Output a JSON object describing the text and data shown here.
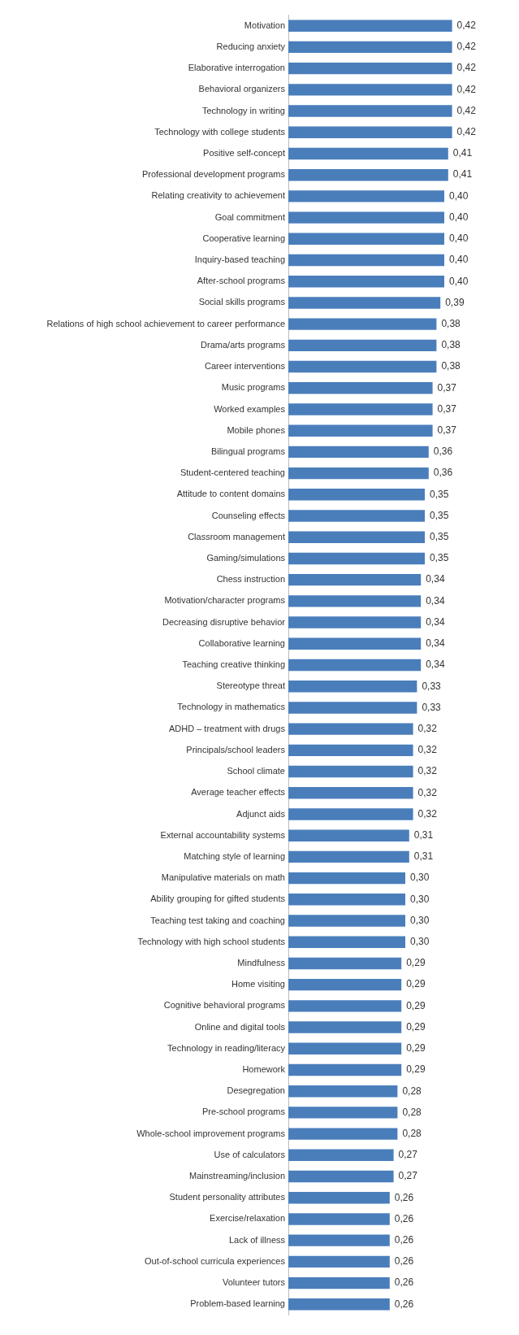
{
  "chart_data": {
    "type": "bar",
    "orientation": "horizontal",
    "tick_labels": "y",
    "color": "#4a7ebb",
    "categories": [
      "Motivation",
      "Reducing anxiety",
      "Elaborative interrogation",
      "Behavioral organizers",
      "Technology in writing",
      "Technology with college students",
      "Positive self-concept",
      "Professional development programs",
      "Relating creativity to achievement",
      "Goal commitment",
      "Cooperative learning",
      "Inquiry-based teaching",
      "After-school programs",
      "Social skills programs",
      "Relations of high school achievement to career performance",
      "Drama/arts programs",
      "Career interventions",
      "Music programs",
      "Worked examples",
      "Mobile phones",
      "Bilingual programs",
      "Student-centered teaching",
      "Attitude to content domains",
      "Counseling effects",
      "Classroom management",
      "Gaming/simulations",
      "Chess instruction",
      "Motivation/character programs",
      "Decreasing disruptive behavior",
      "Collaborative learning",
      "Teaching creative thinking",
      "Stereotype threat",
      "Technology in mathematics",
      "ADHD – treatment with drugs",
      "Principals/school leaders",
      "School climate",
      "Average teacher effects",
      "Adjunct aids",
      "External accountability systems",
      "Matching style of learning",
      "Manipulative materials on math",
      "Ability grouping for gifted students",
      "Teaching test taking and coaching",
      "Technology with high school students",
      "Mindfulness",
      "Home visiting",
      "Cognitive behavioral programs",
      "Online and digital tools",
      "Technology in reading/literacy",
      "Homework",
      "Desegregation",
      "Pre-school programs",
      "Whole-school improvement programs",
      "Use of calculators",
      "Mainstreaming/inclusion",
      "Student personality attributes",
      "Exercise/relaxation",
      "Lack of illness",
      "Out-of-school curricula experiences",
      "Volunteer tutors",
      "Problem-based learning"
    ],
    "values": [
      0.42,
      0.42,
      0.42,
      0.42,
      0.42,
      0.42,
      0.41,
      0.41,
      0.4,
      0.4,
      0.4,
      0.4,
      0.4,
      0.39,
      0.38,
      0.38,
      0.38,
      0.37,
      0.37,
      0.37,
      0.36,
      0.36,
      0.35,
      0.35,
      0.35,
      0.35,
      0.34,
      0.34,
      0.34,
      0.34,
      0.34,
      0.33,
      0.33,
      0.32,
      0.32,
      0.32,
      0.32,
      0.32,
      0.31,
      0.31,
      0.3,
      0.3,
      0.3,
      0.3,
      0.29,
      0.29,
      0.29,
      0.29,
      0.29,
      0.29,
      0.28,
      0.28,
      0.28,
      0.27,
      0.27,
      0.26,
      0.26,
      0.26,
      0.26,
      0.26,
      0.26
    ],
    "value_labels": [
      "0,42",
      "0,42",
      "0,42",
      "0,42",
      "0,42",
      "0,42",
      "0,41",
      "0,41",
      "0,40",
      "0,40",
      "0,40",
      "0,40",
      "0,40",
      "0,39",
      "0,38",
      "0,38",
      "0,38",
      "0,37",
      "0,37",
      "0,37",
      "0,36",
      "0,36",
      "0,35",
      "0,35",
      "0,35",
      "0,35",
      "0,34",
      "0,34",
      "0,34",
      "0,34",
      "0,34",
      "0,33",
      "0,33",
      "0,32",
      "0,32",
      "0,32",
      "0,32",
      "0,32",
      "0,31",
      "0,31",
      "0,30",
      "0,30",
      "0,30",
      "0,30",
      "0,29",
      "0,29",
      "0,29",
      "0,29",
      "0,29",
      "0,29",
      "0,28",
      "0,28",
      "0,28",
      "0,27",
      "0,27",
      "0,26",
      "0,26",
      "0,26",
      "0,26",
      "0,26",
      "0,26"
    ]
  }
}
